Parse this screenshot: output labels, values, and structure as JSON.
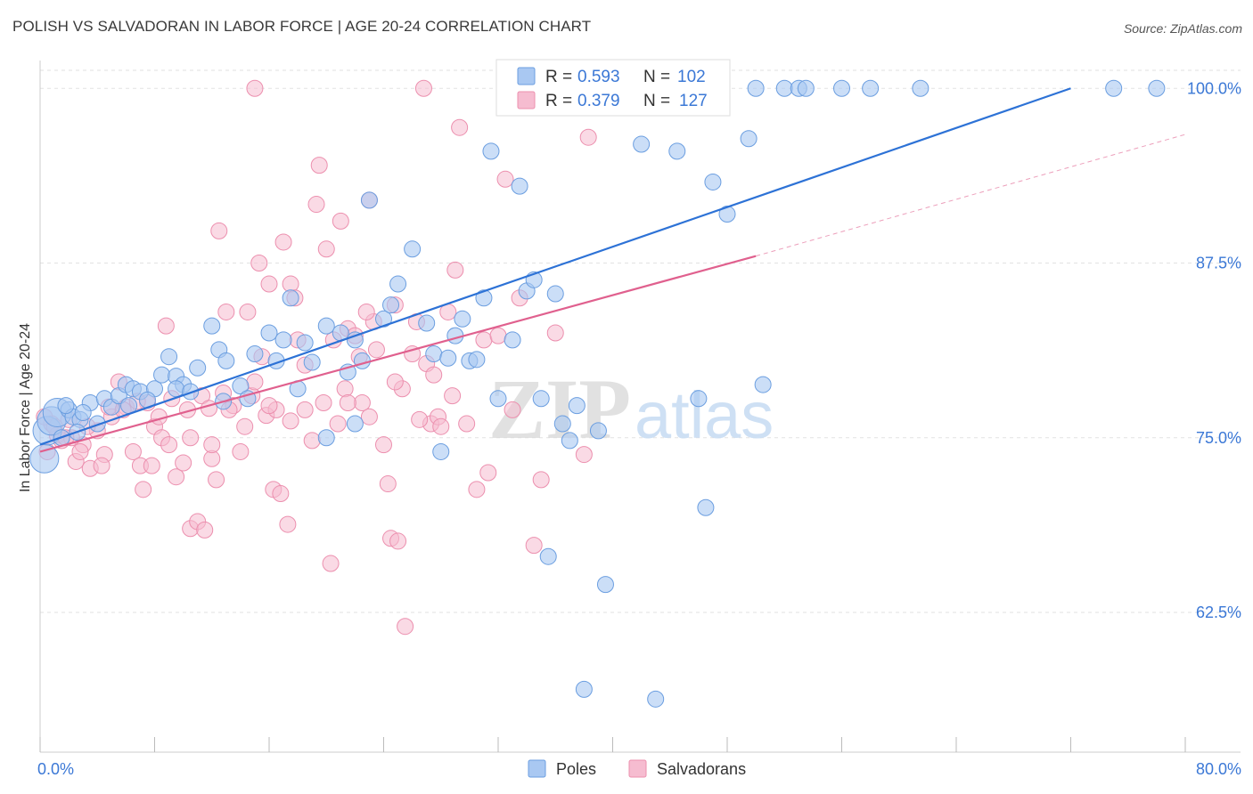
{
  "title": "POLISH VS SALVADORAN IN LABOR FORCE | AGE 20-24 CORRELATION CHART",
  "source": "Source: ZipAtlas.com",
  "watermark": {
    "zip": "ZIP",
    "atlas": "atlas"
  },
  "colors": {
    "poles_fill": "#a9c8f2",
    "poles_stroke": "#6b9ee0",
    "poles_line": "#2d72d6",
    "salv_fill": "#f6bcd0",
    "salv_stroke": "#ec8fae",
    "salv_line": "#e0608e",
    "axis_blue": "#3b78d6",
    "grid": "#e2e2e2"
  },
  "legend_top": [
    {
      "series": "Poles",
      "r_label": "R = ",
      "r_value": "0.593",
      "n_label": "N = ",
      "n_value": "102"
    },
    {
      "series": "Salvadorans",
      "r_label": "R = ",
      "r_value": "0.379",
      "n_label": "N = ",
      "n_value": "127"
    }
  ],
  "chart_data": {
    "type": "scatter",
    "title": "POLISH VS SALVADORAN IN LABOR FORCE | AGE 20-24 CORRELATION CHART",
    "xlabel": "",
    "ylabel": "In Labor Force | Age 20-24",
    "xlim": [
      0,
      80
    ],
    "ylim": [
      52.5,
      102.5
    ],
    "x_tick_labels": [
      "0.0%",
      "80.0%"
    ],
    "y_ticks": [
      62.5,
      75.0,
      87.5,
      100.0
    ],
    "y_tick_labels": [
      "62.5%",
      "75.0%",
      "87.5%",
      "100.0%"
    ],
    "grid": "horizontal dashed",
    "legend": "top-center and bottom-center",
    "series": [
      {
        "name": "Poles",
        "trend": {
          "x0": 0,
          "y0": 74.5,
          "x1": 72,
          "y1": 100.0
        },
        "points": [
          [
            0.3,
            73.5
          ],
          [
            0.5,
            75.5
          ],
          [
            0.8,
            76.2
          ],
          [
            1.2,
            76.8
          ],
          [
            1.5,
            75.0
          ],
          [
            2.0,
            77.0
          ],
          [
            2.3,
            76.5
          ],
          [
            2.8,
            76.3
          ],
          [
            3.5,
            77.5
          ],
          [
            4.0,
            76.0
          ],
          [
            4.5,
            77.8
          ],
          [
            5.0,
            77.2
          ],
          [
            5.5,
            78.0
          ],
          [
            6.0,
            78.8
          ],
          [
            6.5,
            78.5
          ],
          [
            7.0,
            78.3
          ],
          [
            8.0,
            78.5
          ],
          [
            8.5,
            79.5
          ],
          [
            9.0,
            80.8
          ],
          [
            9.5,
            79.4
          ],
          [
            10.0,
            78.8
          ],
          [
            11.0,
            80.0
          ],
          [
            12.0,
            83.0
          ],
          [
            12.5,
            81.3
          ],
          [
            13.0,
            80.5
          ],
          [
            14.0,
            78.7
          ],
          [
            15.0,
            81.0
          ],
          [
            16.0,
            82.5
          ],
          [
            16.5,
            80.5
          ],
          [
            17.0,
            82.0
          ],
          [
            17.5,
            85.0
          ],
          [
            18.0,
            78.5
          ],
          [
            18.5,
            81.8
          ],
          [
            19.0,
            80.4
          ],
          [
            20.0,
            83.0
          ],
          [
            21.0,
            82.5
          ],
          [
            21.5,
            79.7
          ],
          [
            22.0,
            82.0
          ],
          [
            22.5,
            80.5
          ],
          [
            23.0,
            92.0
          ],
          [
            24.0,
            83.5
          ],
          [
            24.5,
            84.5
          ],
          [
            25.0,
            86.0
          ],
          [
            26.0,
            88.5
          ],
          [
            27.0,
            83.2
          ],
          [
            27.5,
            81.0
          ],
          [
            28.5,
            80.7
          ],
          [
            28.0,
            74.0
          ],
          [
            29.0,
            82.3
          ],
          [
            29.5,
            83.5
          ],
          [
            30.0,
            80.5
          ],
          [
            30.5,
            80.6
          ],
          [
            31.0,
            85.0
          ],
          [
            31.5,
            95.5
          ],
          [
            32.0,
            77.8
          ],
          [
            33.0,
            82.0
          ],
          [
            33.5,
            93.0
          ],
          [
            34.0,
            85.5
          ],
          [
            34.5,
            86.3
          ],
          [
            35.0,
            77.8
          ],
          [
            35.5,
            66.5
          ],
          [
            36.0,
            85.3
          ],
          [
            36.5,
            76.0
          ],
          [
            37.0,
            74.8
          ],
          [
            37.5,
            77.3
          ],
          [
            38.0,
            57.0
          ],
          [
            39.0,
            75.5
          ],
          [
            39.5,
            64.5
          ],
          [
            40.0,
            100.0
          ],
          [
            41.0,
            100.0
          ],
          [
            42.0,
            96.0
          ],
          [
            43.0,
            56.3
          ],
          [
            44.0,
            100.0
          ],
          [
            44.5,
            95.5
          ],
          [
            45.0,
            100.0
          ],
          [
            45.5,
            100.0
          ],
          [
            46.0,
            77.8
          ],
          [
            47.0,
            93.3
          ],
          [
            46.5,
            70.0
          ],
          [
            48.0,
            91.0
          ],
          [
            50.0,
            100.0
          ],
          [
            49.5,
            96.4
          ],
          [
            50.5,
            78.8
          ],
          [
            52.0,
            100.0
          ],
          [
            53.0,
            100.0
          ],
          [
            53.5,
            100.0
          ],
          [
            56.0,
            100.0
          ],
          [
            58.0,
            100.0
          ],
          [
            61.5,
            100.0
          ],
          [
            75.0,
            100.0
          ],
          [
            78.0,
            100.0
          ],
          [
            22.0,
            76.0
          ],
          [
            20.0,
            75.0
          ],
          [
            9.5,
            78.5
          ],
          [
            6.2,
            77.3
          ],
          [
            3.0,
            76.8
          ],
          [
            2.6,
            75.4
          ],
          [
            1.8,
            77.3
          ],
          [
            7.5,
            77.7
          ],
          [
            12.8,
            77.6
          ],
          [
            14.5,
            77.8
          ],
          [
            10.5,
            78.3
          ]
        ]
      },
      {
        "name": "Salvadorans",
        "trend": {
          "x0": 0,
          "y0": 74.0,
          "x1": 50,
          "y1": 88.0,
          "dash_x1": 80,
          "dash_y1": 96.7
        },
        "points": [
          [
            0.5,
            74.0
          ],
          [
            0.8,
            76.0
          ],
          [
            1.2,
            75.2
          ],
          [
            1.5,
            74.8
          ],
          [
            2.0,
            76.3
          ],
          [
            2.5,
            73.3
          ],
          [
            3.0,
            74.5
          ],
          [
            3.5,
            72.8
          ],
          [
            4.0,
            75.5
          ],
          [
            4.5,
            73.8
          ],
          [
            5.0,
            76.5
          ],
          [
            5.5,
            79.0
          ],
          [
            6.0,
            77.2
          ],
          [
            6.5,
            74.0
          ],
          [
            7.0,
            73.0
          ],
          [
            7.2,
            71.3
          ],
          [
            7.5,
            77.5
          ],
          [
            8.0,
            75.8
          ],
          [
            8.3,
            76.5
          ],
          [
            8.5,
            75.0
          ],
          [
            8.8,
            83.0
          ],
          [
            9.0,
            74.5
          ],
          [
            9.5,
            72.2
          ],
          [
            10.0,
            73.2
          ],
          [
            10.3,
            77.0
          ],
          [
            10.5,
            75.0
          ],
          [
            10.5,
            68.5
          ],
          [
            11.0,
            69.0
          ],
          [
            11.3,
            78.0
          ],
          [
            11.5,
            68.4
          ],
          [
            12.0,
            73.5
          ],
          [
            12.3,
            72.0
          ],
          [
            12.5,
            89.8
          ],
          [
            12.8,
            78.2
          ],
          [
            13.0,
            84.0
          ],
          [
            13.5,
            77.3
          ],
          [
            14.0,
            74.0
          ],
          [
            14.3,
            75.8
          ],
          [
            14.8,
            78.0
          ],
          [
            15.0,
            79.0
          ],
          [
            15.3,
            87.5
          ],
          [
            15.5,
            80.8
          ],
          [
            15.8,
            76.6
          ],
          [
            16.0,
            86.0
          ],
          [
            16.3,
            71.3
          ],
          [
            16.5,
            77.0
          ],
          [
            16.8,
            71.0
          ],
          [
            17.0,
            89.0
          ],
          [
            17.3,
            68.8
          ],
          [
            17.5,
            86.0
          ],
          [
            17.8,
            85.0
          ],
          [
            18.0,
            82.0
          ],
          [
            18.5,
            80.2
          ],
          [
            19.0,
            74.8
          ],
          [
            19.3,
            91.7
          ],
          [
            19.5,
            94.5
          ],
          [
            19.8,
            77.5
          ],
          [
            20.0,
            88.5
          ],
          [
            20.3,
            66.0
          ],
          [
            20.5,
            82.0
          ],
          [
            21.0,
            90.5
          ],
          [
            21.3,
            78.5
          ],
          [
            21.5,
            82.8
          ],
          [
            22.0,
            82.3
          ],
          [
            22.3,
            80.8
          ],
          [
            22.5,
            77.5
          ],
          [
            23.0,
            92.0
          ],
          [
            23.3,
            83.3
          ],
          [
            23.5,
            81.3
          ],
          [
            24.0,
            74.5
          ],
          [
            24.3,
            71.7
          ],
          [
            24.5,
            67.8
          ],
          [
            24.8,
            84.5
          ],
          [
            25.0,
            67.6
          ],
          [
            25.3,
            78.5
          ],
          [
            25.5,
            61.5
          ],
          [
            26.0,
            81.0
          ],
          [
            26.3,
            83.3
          ],
          [
            26.8,
            100.0
          ],
          [
            27.0,
            80.3
          ],
          [
            27.3,
            76.0
          ],
          [
            27.5,
            79.5
          ],
          [
            27.8,
            76.5
          ],
          [
            28.0,
            75.8
          ],
          [
            28.5,
            84.0
          ],
          [
            28.8,
            78.0
          ],
          [
            29.0,
            87.0
          ],
          [
            29.3,
            97.2
          ],
          [
            29.8,
            76.0
          ],
          [
            30.5,
            71.3
          ],
          [
            31.0,
            82.0
          ],
          [
            31.3,
            72.5
          ],
          [
            32.0,
            82.3
          ],
          [
            32.5,
            93.5
          ],
          [
            33.0,
            77.0
          ],
          [
            33.5,
            85.0
          ],
          [
            34.5,
            67.3
          ],
          [
            35.0,
            72.0
          ],
          [
            36.0,
            82.5
          ],
          [
            38.0,
            73.8
          ],
          [
            38.3,
            96.5
          ],
          [
            15.0,
            100.0
          ],
          [
            2.2,
            75.0
          ],
          [
            3.3,
            75.8
          ],
          [
            4.3,
            73.0
          ],
          [
            6.8,
            77.6
          ],
          [
            9.2,
            77.8
          ],
          [
            11.8,
            77.1
          ],
          [
            13.2,
            77.0
          ],
          [
            16.0,
            77.3
          ],
          [
            17.5,
            76.2
          ],
          [
            18.5,
            77.0
          ],
          [
            21.5,
            77.5
          ],
          [
            23.0,
            76.5
          ],
          [
            24.8,
            79.0
          ],
          [
            26.5,
            76.3
          ],
          [
            4.8,
            77.2
          ],
          [
            5.8,
            77.0
          ],
          [
            1.0,
            75.8
          ],
          [
            1.8,
            75.0
          ],
          [
            2.8,
            74.0
          ],
          [
            0.3,
            76.5
          ],
          [
            14.5,
            84.0
          ],
          [
            22.8,
            84.0
          ],
          [
            20.8,
            76.0
          ],
          [
            7.8,
            73.0
          ],
          [
            12.0,
            74.5
          ]
        ]
      }
    ]
  }
}
